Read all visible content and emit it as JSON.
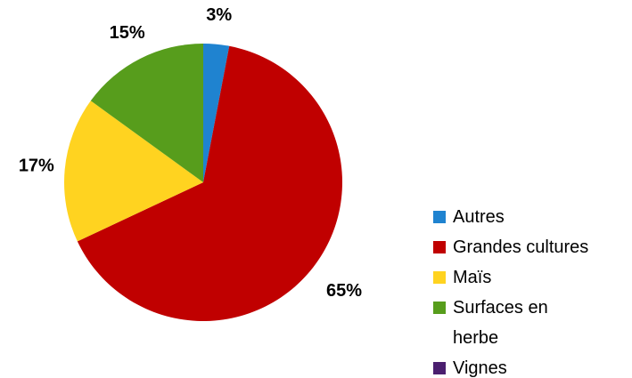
{
  "chart_data": {
    "type": "pie",
    "categories": [
      "Autres",
      "Grandes cultures",
      "Maïs",
      "Surfaces en herbe",
      "Vignes"
    ],
    "values": [
      3,
      65,
      17,
      15,
      0
    ],
    "value_labels": [
      "3%",
      "65%",
      "17%",
      "15%",
      null
    ],
    "colors": [
      "#1f83d0",
      "#c00000",
      "#ffd320",
      "#579d1c",
      "#4b1f6f"
    ],
    "legend": "right"
  }
}
